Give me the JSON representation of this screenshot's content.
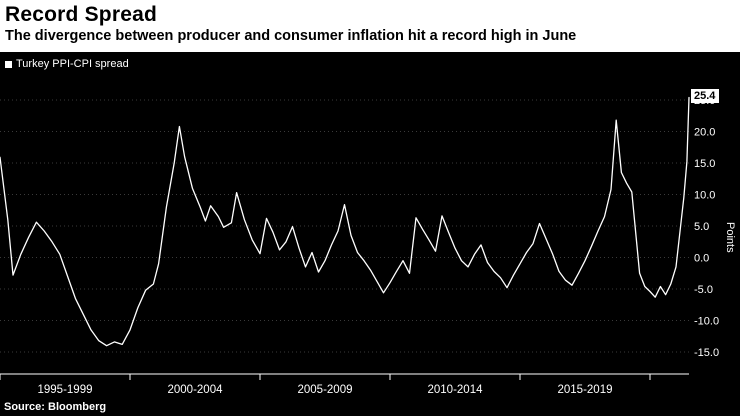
{
  "header": {
    "title": "Record Spread",
    "subtitle": "The divergence between producer and consumer inflation hit a record high in June"
  },
  "legend": {
    "label": "Turkey PPI-CPI spread"
  },
  "axis": {
    "points_label": "Points"
  },
  "footer": {
    "source": "Source:  Bloomberg"
  },
  "last_value_label": "25.4",
  "colors": {
    "background": "#000000",
    "header_bg": "#ffffff",
    "header_text": "#000000",
    "line": "#ffffff",
    "text_on_dark": "#ffffff",
    "grid": "#3a3a3a"
  },
  "chart_data": {
    "type": "line",
    "title": "Record Spread",
    "subtitle": "The divergence between producer and consumer inflation hit a record high in June",
    "ylabel": "Points",
    "legend_position": "top-left",
    "grid": "dotted-horizontal",
    "ylim": [
      -15,
      25
    ],
    "yticks": [
      25,
      20,
      15,
      10,
      5,
      0,
      -5,
      -10,
      -15
    ],
    "ytick_labels": [
      "25.0",
      "20.0",
      "15.0",
      "10.0",
      "5.0",
      "0.0",
      "-5.0",
      "-10.0",
      "-15.0"
    ],
    "x_range": [
      1995,
      2021.5
    ],
    "xtick_years": [
      1995,
      2000,
      2005,
      2010,
      2015,
      2020
    ],
    "x_bin_labels": [
      {
        "label": "1995-1999",
        "center": 1997.5
      },
      {
        "label": "2000-2004",
        "center": 2002.5
      },
      {
        "label": "2005-2009",
        "center": 2007.5
      },
      {
        "label": "2010-2014",
        "center": 2012.5
      },
      {
        "label": "2015-2019",
        "center": 2017.5
      }
    ],
    "last_value": 25.4,
    "series": [
      {
        "name": "Turkey PPI-CPI spread",
        "x": [
          1995.0,
          1995.3,
          1995.5,
          1995.8,
          1996.1,
          1996.4,
          1996.7,
          1997.0,
          1997.3,
          1997.6,
          1997.9,
          1998.2,
          1998.5,
          1998.8,
          1999.1,
          1999.4,
          1999.7,
          2000.0,
          2000.3,
          2000.6,
          2000.9,
          2001.1,
          2001.4,
          2001.7,
          2001.9,
          2002.1,
          2002.4,
          2002.7,
          2002.9,
          2003.1,
          2003.4,
          2003.6,
          2003.9,
          2004.1,
          2004.4,
          2004.7,
          2005.0,
          2005.25,
          2005.5,
          2005.75,
          2006.0,
          2006.25,
          2006.5,
          2006.75,
          2007.0,
          2007.25,
          2007.5,
          2007.75,
          2008.0,
          2008.25,
          2008.5,
          2008.75,
          2009.0,
          2009.25,
          2009.5,
          2009.75,
          2010.0,
          2010.25,
          2010.5,
          2010.75,
          2011.0,
          2011.25,
          2011.5,
          2011.75,
          2012.0,
          2012.25,
          2012.5,
          2012.75,
          2013.0,
          2013.25,
          2013.5,
          2013.75,
          2014.0,
          2014.25,
          2014.5,
          2014.75,
          2015.0,
          2015.25,
          2015.5,
          2015.75,
          2016.0,
          2016.25,
          2016.5,
          2016.75,
          2017.0,
          2017.25,
          2017.5,
          2017.75,
          2018.0,
          2018.25,
          2018.5,
          2018.7,
          2018.9,
          2019.1,
          2019.3,
          2019.6,
          2019.8,
          2020.0,
          2020.2,
          2020.4,
          2020.6,
          2020.8,
          2021.0,
          2021.15,
          2021.3,
          2021.42,
          2021.5
        ],
        "y": [
          15.9,
          6.0,
          -2.8,
          0.5,
          3.2,
          5.6,
          4.2,
          2.5,
          0.5,
          -3.0,
          -6.5,
          -9.0,
          -11.5,
          -13.2,
          -14.0,
          -13.4,
          -13.8,
          -11.5,
          -8.0,
          -5.2,
          -4.2,
          -1.0,
          8.0,
          15.0,
          20.8,
          16.0,
          11.0,
          8.0,
          5.8,
          8.2,
          6.5,
          4.8,
          5.5,
          10.3,
          6.0,
          2.8,
          0.6,
          6.2,
          4.0,
          1.2,
          2.5,
          4.9,
          1.5,
          -1.5,
          0.8,
          -2.3,
          -0.5,
          2.0,
          4.2,
          8.4,
          3.5,
          0.8,
          -0.5,
          -2.0,
          -3.8,
          -5.6,
          -4.0,
          -2.2,
          -0.5,
          -2.5,
          6.3,
          4.5,
          2.8,
          1.0,
          6.6,
          4.0,
          1.5,
          -0.5,
          -1.5,
          0.5,
          2.0,
          -0.8,
          -2.2,
          -3.2,
          -4.8,
          -2.8,
          -1.0,
          0.8,
          2.2,
          5.4,
          3.0,
          0.6,
          -2.2,
          -3.6,
          -4.4,
          -2.5,
          -0.5,
          1.8,
          4.2,
          6.5,
          10.8,
          21.8,
          13.5,
          11.8,
          10.4,
          -2.5,
          -4.6,
          -5.4,
          -6.3,
          -4.6,
          -5.9,
          -4.2,
          -1.5,
          4.0,
          9.5,
          15.2,
          25.4
        ]
      }
    ]
  }
}
